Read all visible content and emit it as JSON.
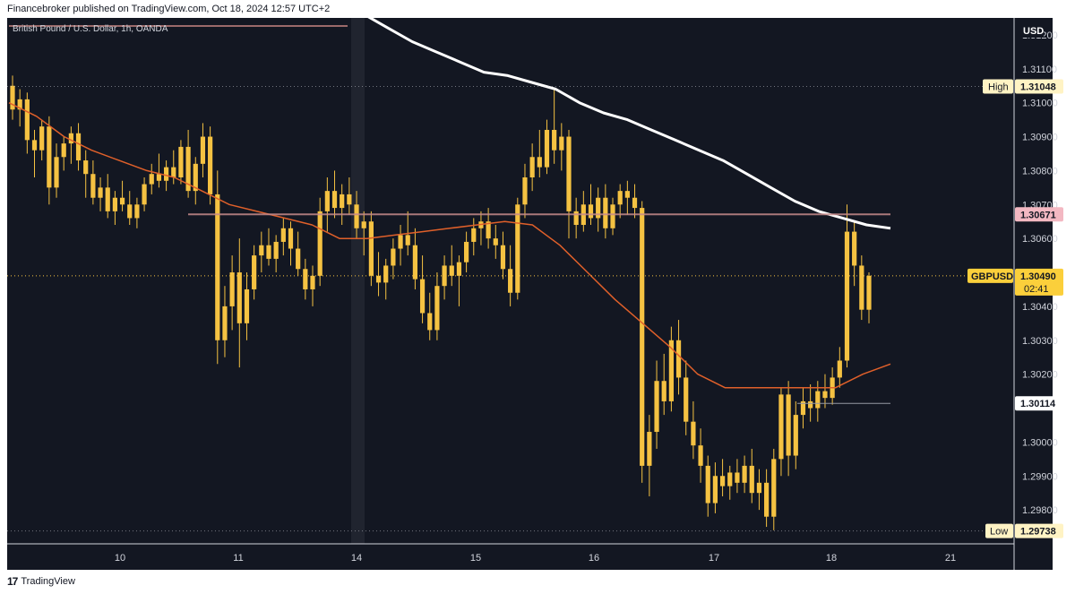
{
  "header": {
    "text": "Financebroker published on TradingView.com, Oct 18, 2024 12:57 UTC+2"
  },
  "symbol_title": "British Pound / U.S. Dollar, 1h, OANDA",
  "footer": {
    "logo": "17",
    "brand": "TradingView"
  },
  "colors": {
    "bg": "#131722",
    "candle": "#f5c242",
    "ma_fast": "#e0602a",
    "ma_slow": "#ffffff",
    "label_bg": "#fbcf3b"
  },
  "price_axis": {
    "currency": "USD",
    "ticks": [
      "1.31200",
      "1.31100",
      "1.31000",
      "1.30900",
      "1.30800",
      "1.30700",
      "1.30600",
      "1.30400",
      "1.30300",
      "1.30200",
      "1.30000",
      "1.29900",
      "1.29800"
    ],
    "high_label": "High",
    "high_value": "1.31048",
    "low_label": "Low",
    "low_value": "1.29738",
    "level_value": "1.30671",
    "level2_value": "1.30114",
    "current_symbol": "GBPUSD",
    "current_value": "1.30490",
    "countdown": "02:41"
  },
  "chart_data": {
    "type": "candlestick",
    "title": "British Pound / U.S. Dollar, 1h, OANDA",
    "x_ticks": [
      "10",
      "11",
      "14",
      "15",
      "16",
      "17",
      "18",
      "21"
    ],
    "ylim": [
      1.297,
      1.3125
    ],
    "high": 1.31048,
    "low": 1.29738,
    "last": 1.3049,
    "horizontal_levels": [
      1.30671,
      1.30114
    ],
    "series": [
      {
        "kind": "moving_average_slow",
        "values": [
          1.3128,
          1.3126,
          1.3122,
          1.3118,
          1.3115,
          1.3112,
          1.3109,
          1.3108,
          1.3106,
          1.3104,
          1.31,
          1.3097,
          1.3095,
          1.3092,
          1.3089,
          1.3086,
          1.3083,
          1.3079,
          1.3075,
          1.3071,
          1.3068,
          1.3066,
          1.3064,
          1.3063
        ]
      },
      {
        "kind": "moving_average_fast",
        "values": [
          1.31,
          1.3096,
          1.309,
          1.3086,
          1.3083,
          1.308,
          1.3078,
          1.3074,
          1.307,
          1.3068,
          1.3066,
          1.3064,
          1.306,
          1.306,
          1.3061,
          1.3062,
          1.3063,
          1.3064,
          1.3065,
          1.3064,
          1.3058,
          1.305,
          1.3042,
          1.3035,
          1.3028,
          1.302,
          1.3016,
          1.3016,
          1.3016,
          1.3016,
          1.3016,
          1.302,
          1.3023
        ]
      }
    ],
    "candles": [
      [
        1.3105,
        1.3108,
        1.3095,
        1.3098
      ],
      [
        1.3098,
        1.3104,
        1.3093,
        1.3101
      ],
      [
        1.3101,
        1.3103,
        1.3085,
        1.3089
      ],
      [
        1.3089,
        1.3092,
        1.3078,
        1.3086
      ],
      [
        1.3086,
        1.3095,
        1.3083,
        1.3093
      ],
      [
        1.3093,
        1.3096,
        1.307,
        1.3075
      ],
      [
        1.3075,
        1.3088,
        1.3072,
        1.3084
      ],
      [
        1.3084,
        1.309,
        1.308,
        1.3088
      ],
      [
        1.3088,
        1.3093,
        1.3082,
        1.3091
      ],
      [
        1.3091,
        1.3094,
        1.308,
        1.3083
      ],
      [
        1.3083,
        1.3086,
        1.3072,
        1.3079
      ],
      [
        1.3079,
        1.3083,
        1.307,
        1.3072
      ],
      [
        1.3072,
        1.3078,
        1.3068,
        1.3075
      ],
      [
        1.3075,
        1.3079,
        1.3066,
        1.3068
      ],
      [
        1.3068,
        1.3074,
        1.3064,
        1.3072
      ],
      [
        1.3072,
        1.3077,
        1.3068,
        1.307
      ],
      [
        1.307,
        1.3074,
        1.3064,
        1.3066
      ],
      [
        1.3066,
        1.3072,
        1.3063,
        1.307
      ],
      [
        1.307,
        1.3078,
        1.3068,
        1.3076
      ],
      [
        1.3076,
        1.3082,
        1.3073,
        1.3079
      ],
      [
        1.3079,
        1.3085,
        1.3075,
        1.3077
      ],
      [
        1.3077,
        1.3083,
        1.3074,
        1.3081
      ],
      [
        1.3081,
        1.3086,
        1.3076,
        1.3078
      ],
      [
        1.3078,
        1.3089,
        1.3076,
        1.3087
      ],
      [
        1.3087,
        1.3092,
        1.3072,
        1.3074
      ],
      [
        1.3074,
        1.3084,
        1.307,
        1.3082
      ],
      [
        1.3082,
        1.3094,
        1.3078,
        1.309
      ],
      [
        1.309,
        1.3093,
        1.307,
        1.3073
      ],
      [
        1.3073,
        1.308,
        1.3023,
        1.303
      ],
      [
        1.303,
        1.3046,
        1.3025,
        1.304
      ],
      [
        1.304,
        1.3055,
        1.3033,
        1.305
      ],
      [
        1.305,
        1.306,
        1.3022,
        1.3035
      ],
      [
        1.3035,
        1.305,
        1.303,
        1.3045
      ],
      [
        1.3045,
        1.3058,
        1.3042,
        1.3055
      ],
      [
        1.3055,
        1.3062,
        1.305,
        1.3058
      ],
      [
        1.3058,
        1.3063,
        1.3052,
        1.3054
      ],
      [
        1.3054,
        1.3061,
        1.305,
        1.3059
      ],
      [
        1.3059,
        1.3066,
        1.3055,
        1.3063
      ],
      [
        1.3063,
        1.3065,
        1.3052,
        1.3057
      ],
      [
        1.3057,
        1.3062,
        1.3049,
        1.3051
      ],
      [
        1.3051,
        1.3054,
        1.3042,
        1.3045
      ],
      [
        1.3045,
        1.3052,
        1.304,
        1.3049
      ],
      [
        1.3049,
        1.3072,
        1.3046,
        1.3068
      ],
      [
        1.3068,
        1.3078,
        1.3062,
        1.3074
      ],
      [
        1.3074,
        1.308,
        1.3066,
        1.3069
      ],
      [
        1.3069,
        1.3076,
        1.3064,
        1.3073
      ],
      [
        1.3073,
        1.3078,
        1.3067,
        1.307
      ],
      [
        1.307,
        1.3074,
        1.306,
        1.3063
      ],
      [
        1.3063,
        1.3068,
        1.3055,
        1.3065
      ],
      [
        1.3065,
        1.3068,
        1.3046,
        1.3049
      ],
      [
        1.3049,
        1.3056,
        1.3043,
        1.3047
      ],
      [
        1.3047,
        1.3054,
        1.3042,
        1.3052
      ],
      [
        1.3052,
        1.306,
        1.3048,
        1.3057
      ],
      [
        1.3057,
        1.3064,
        1.3052,
        1.3061
      ],
      [
        1.3061,
        1.3068,
        1.3055,
        1.3058
      ],
      [
        1.3058,
        1.3063,
        1.3045,
        1.3048
      ],
      [
        1.3048,
        1.3055,
        1.3035,
        1.3038
      ],
      [
        1.3038,
        1.3044,
        1.303,
        1.3033
      ],
      [
        1.3033,
        1.305,
        1.303,
        1.3046
      ],
      [
        1.3046,
        1.3055,
        1.3042,
        1.3052
      ],
      [
        1.3052,
        1.3058,
        1.3046,
        1.3049
      ],
      [
        1.3049,
        1.3055,
        1.304,
        1.3053
      ],
      [
        1.3053,
        1.3062,
        1.305,
        1.3059
      ],
      [
        1.3059,
        1.3066,
        1.3055,
        1.3063
      ],
      [
        1.3063,
        1.3068,
        1.3058,
        1.3065
      ],
      [
        1.3065,
        1.3069,
        1.3057,
        1.306
      ],
      [
        1.306,
        1.3064,
        1.3054,
        1.3058
      ],
      [
        1.3058,
        1.3062,
        1.3048,
        1.3051
      ],
      [
        1.3051,
        1.3058,
        1.304,
        1.3044
      ],
      [
        1.3044,
        1.3072,
        1.3042,
        1.307
      ],
      [
        1.307,
        1.3082,
        1.3066,
        1.3078
      ],
      [
        1.3078,
        1.3088,
        1.3074,
        1.3084
      ],
      [
        1.3084,
        1.3092,
        1.3078,
        1.3081
      ],
      [
        1.3081,
        1.3095,
        1.3079,
        1.3092
      ],
      [
        1.3092,
        1.3104,
        1.3082,
        1.3086
      ],
      [
        1.3086,
        1.3094,
        1.308,
        1.309
      ],
      [
        1.309,
        1.3092,
        1.306,
        1.3068
      ],
      [
        1.3068,
        1.3072,
        1.306,
        1.3064
      ],
      [
        1.3064,
        1.3074,
        1.3062,
        1.307
      ],
      [
        1.307,
        1.3076,
        1.3064,
        1.3066
      ],
      [
        1.3066,
        1.3075,
        1.3062,
        1.3072
      ],
      [
        1.3072,
        1.3076,
        1.306,
        1.3063
      ],
      [
        1.3063,
        1.3072,
        1.3061,
        1.307
      ],
      [
        1.307,
        1.3076,
        1.3066,
        1.3074
      ],
      [
        1.3074,
        1.3077,
        1.3067,
        1.3072
      ],
      [
        1.3072,
        1.3076,
        1.3066,
        1.3069
      ],
      [
        1.3069,
        1.3071,
        1.2988,
        1.2993
      ],
      [
        1.2993,
        1.3008,
        1.2984,
        1.3003
      ],
      [
        1.3003,
        1.3024,
        1.2998,
        1.3018
      ],
      [
        1.3018,
        1.3026,
        1.3008,
        1.3012
      ],
      [
        1.3012,
        1.3034,
        1.3009,
        1.303
      ],
      [
        1.303,
        1.3036,
        1.3014,
        1.3019
      ],
      [
        1.3019,
        1.3024,
        1.3002,
        1.3006
      ],
      [
        1.3006,
        1.3012,
        1.2995,
        1.2999
      ],
      [
        1.2999,
        1.3004,
        1.2988,
        1.2993
      ],
      [
        1.2993,
        1.2996,
        1.2978,
        1.2982
      ],
      [
        1.2982,
        1.2994,
        1.2979,
        1.299
      ],
      [
        1.299,
        1.2995,
        1.2984,
        1.2987
      ],
      [
        1.2987,
        1.2993,
        1.2983,
        1.2991
      ],
      [
        1.2991,
        1.2995,
        1.2985,
        1.2988
      ],
      [
        1.2988,
        1.2996,
        1.2985,
        1.2993
      ],
      [
        1.2993,
        1.2998,
        1.2982,
        1.2985
      ],
      [
        1.2985,
        1.2992,
        1.298,
        1.2988
      ],
      [
        1.2988,
        1.2992,
        1.2975,
        1.2978
      ],
      [
        1.2978,
        1.2998,
        1.2974,
        1.2995
      ],
      [
        1.2995,
        1.3016,
        1.299,
        1.3014
      ],
      [
        1.3014,
        1.3018,
        1.299,
        1.2996
      ],
      [
        1.2996,
        1.3012,
        1.2992,
        1.3008
      ],
      [
        1.3008,
        1.3016,
        1.3004,
        1.3012
      ],
      [
        1.3012,
        1.3017,
        1.3006,
        1.301
      ],
      [
        1.301,
        1.3018,
        1.3006,
        1.3015
      ],
      [
        1.3015,
        1.302,
        1.301,
        1.3013
      ],
      [
        1.3013,
        1.3022,
        1.3011,
        1.3019
      ],
      [
        1.3019,
        1.3028,
        1.3016,
        1.3024
      ],
      [
        1.3024,
        1.307,
        1.3022,
        1.3062
      ],
      [
        1.3062,
        1.3065,
        1.3046,
        1.3052
      ],
      [
        1.3052,
        1.3055,
        1.3036,
        1.3039
      ],
      [
        1.3039,
        1.305,
        1.3035,
        1.3049
      ]
    ]
  }
}
